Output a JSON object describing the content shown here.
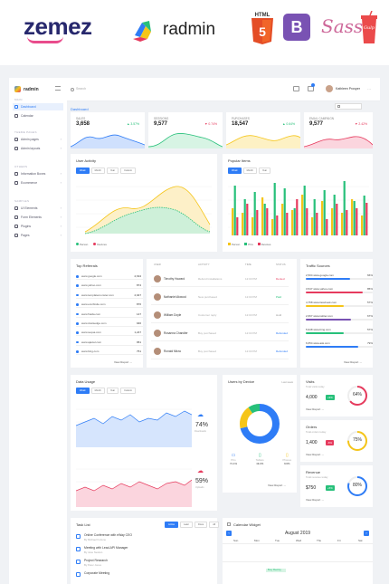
{
  "brands": {
    "zemez": "zemez",
    "radmin": "radmin",
    "html5": "HTML",
    "html5_num": "5",
    "bootstrap": "B",
    "sass": "Sass",
    "gulp": "Gulp"
  },
  "colors": {
    "accent": "#2e7cf6",
    "green": "#27c07a",
    "red": "#e63a5d",
    "yellow": "#f5c518",
    "purple": "#7952b3"
  },
  "app": {
    "logo_text": "radmin",
    "search_placeholder": "Search",
    "user_name": "Kathleen Prosper",
    "page_title": "Dashboard"
  },
  "sidebar": {
    "section_main": "MAIN",
    "items_main": [
      "Dashboard",
      "Calendar"
    ],
    "section_themes": "THEME PAGES",
    "items_themes": [
      "Admin pages",
      "Admin layouts"
    ],
    "section_other": "OTHERS",
    "items_other": [
      "Information Boxes",
      "Ecommerce"
    ],
    "section_samples": "SAMPLES",
    "items_samples": [
      "UI Elements",
      "Form Elements",
      "Plugins",
      "Pages"
    ]
  },
  "stats": [
    {
      "label": "Sales",
      "value": "3,658",
      "delta": "▲ 3.57%",
      "color": "#2e7cf6"
    },
    {
      "label": "Sessions",
      "value": "9,577",
      "delta": "▼ 0.74%",
      "color": "#e63a5d"
    },
    {
      "label": "Purchases",
      "value": "18,547",
      "delta": "▲ 0.64%",
      "color": "#27c07a"
    },
    {
      "label": "Email Campaign",
      "value": "9,577",
      "delta": "▼ 2.42%",
      "color": "#e63a5d"
    }
  ],
  "user_activity": {
    "title": "User Activity",
    "tabs": [
      "Week",
      "Month",
      "Year",
      "Custom"
    ],
    "legend": [
      "Person",
      "Devices"
    ]
  },
  "popular_items": {
    "title": "Popular Items",
    "tabs": [
      "Week",
      "Month",
      "Year"
    ],
    "legend": [
      "Person",
      "PCs",
      "Devices"
    ]
  },
  "top_referrals": {
    "title": "Top Referrals",
    "rows": [
      {
        "site": "www.google.com",
        "value": "2,634"
      },
      {
        "site": "www.yahoo.com",
        "value": "874"
      },
      {
        "site": "www.templatemonster.com",
        "value": "2,947"
      },
      {
        "site": "www.ecurbisite.com",
        "value": "876"
      },
      {
        "site": "www.fraida.com",
        "value": "147"
      },
      {
        "site": "www.dustsedge.com",
        "value": "946"
      },
      {
        "site": "www.sequa.com",
        "value": "1,247"
      },
      {
        "site": "www.ajaxiel.com",
        "value": "951"
      },
      {
        "site": "www.bing.com",
        "value": "751"
      }
    ],
    "more": "View Report →"
  },
  "activity_table": {
    "headers": [
      "USER",
      "ACTIVITY",
      "TIME",
      "STATUS"
    ],
    "rows": [
      {
        "name": "Timothy Howard",
        "activity": "Refund Installations",
        "time": "12:03 PM",
        "status": "Denied",
        "color": "#e63a5d"
      },
      {
        "name": "Nathaniel Atwood",
        "activity": "New purchased",
        "time": "12:03 PM",
        "status": "Paid",
        "color": "#27c07a"
      },
      {
        "name": "William Doyle",
        "activity": "Customer reply",
        "time": "12:03 PM",
        "status": "Hold",
        "color": "#999999"
      },
      {
        "name": "Rosanna Chandler",
        "activity": "Buy purchased",
        "time": "12:03 PM",
        "status": "Refunded",
        "color": "#2e7cf6"
      },
      {
        "name": "Ronald Mirza",
        "activity": "Buy purchased",
        "time": "12:03 PM",
        "status": "Refunded",
        "color": "#2e7cf6"
      }
    ]
  },
  "traffic_sources": {
    "title": "Traffic Sources",
    "rows": [
      {
        "label": "2,504",
        "sub": "www.google.com",
        "pct": "66%",
        "color": "#2e7cf6",
        "fill": 0.66
      },
      {
        "label": "3,547",
        "sub": "www.yahoo.com",
        "pct": "85%",
        "color": "#e63a5d",
        "fill": 0.85
      },
      {
        "label": "4,758",
        "sub": "www.facebook.com",
        "pct": "57%",
        "color": "#f5c518",
        "fill": 0.57
      },
      {
        "label": "2,667",
        "sub": "www.twitter.com",
        "pct": "67%",
        "color": "#7952b3",
        "fill": 0.67
      },
      {
        "label": "5,948",
        "sub": "www.bing.com",
        "pct": "57%",
        "color": "#27c07a",
        "fill": 0.57
      },
      {
        "label": "6,654",
        "sub": "www.ask.com",
        "pct": "79%",
        "color": "#2e7cf6",
        "fill": 0.79
      }
    ],
    "more": "View Report →"
  },
  "data_usage": {
    "title": "Data Usage",
    "tabs": [
      "Week",
      "Month",
      "Year",
      "Custom"
    ],
    "download_pct": "74%",
    "download_label": "Downloads",
    "upload_pct": "59%",
    "upload_label": "Uploads"
  },
  "users_by_device": {
    "title": "Users by Device",
    "period": "Last week",
    "devices": [
      {
        "name": "PCs",
        "pct": "71.1%"
      },
      {
        "name": "Tablets",
        "pct": "19.2%"
      },
      {
        "name": "Phones",
        "pct": "9.6%"
      }
    ],
    "more": "View Report →"
  },
  "kpis": [
    {
      "title": "Visits",
      "sub": "Total visits today",
      "value": "4,000",
      "badge": "+9%",
      "badge_color": "#27c07a",
      "pct": "64%",
      "ring": "#e63a5d",
      "fill": 0.64
    },
    {
      "title": "Orders",
      "sub": "Total orders today",
      "value": "1,400",
      "badge": "-6%",
      "badge_color": "#e63a5d",
      "pct": "75%",
      "ring": "#f5c518",
      "fill": 0.75
    },
    {
      "title": "Revenue",
      "sub": "Total revenue today",
      "value": "$750",
      "badge": "+5%",
      "badge_color": "#27c07a",
      "pct": "80%",
      "ring": "#2e7cf6",
      "fill": 0.8
    }
  ],
  "kpi_more": "View Report →",
  "task_list": {
    "title": "Task List",
    "tabs": [
      "Active",
      "Later",
      "Done",
      "All"
    ],
    "tasks": [
      {
        "title": "Online Conference with eWay CEO",
        "by": "By Michael Fortune"
      },
      {
        "title": "Meeting with Lead-API Manager",
        "by": "By Jane Newton"
      },
      {
        "title": "Project Research",
        "by": "By Peter Jones"
      },
      {
        "title": "Corporate Meeting",
        "by": ""
      }
    ]
  },
  "calendar": {
    "title": "Calendar Widget",
    "month": "August 2019",
    "days": [
      "Sun",
      "Mon",
      "Tue",
      "Wed",
      "Thu",
      "Fri",
      "Sat"
    ],
    "event": "Busy Meeting"
  }
}
